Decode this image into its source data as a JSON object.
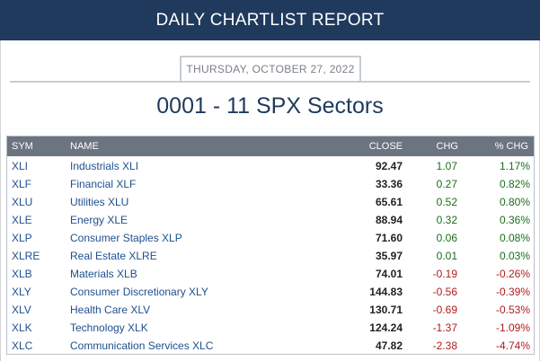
{
  "header": {
    "title": "DAILY CHARTLIST REPORT"
  },
  "report": {
    "date": "THURSDAY, OCTOBER 27, 2022",
    "title": "0001 - 11 SPX Sectors"
  },
  "table": {
    "columns": {
      "sym": "SYM",
      "name": "NAME",
      "close": "CLOSE",
      "chg": "CHG",
      "pct": "% CHG"
    },
    "rows": [
      {
        "sym": "XLI",
        "name": "Industrials XLI",
        "close": "92.47",
        "chg": "1.07",
        "pct": "1.17%",
        "dir": "pos"
      },
      {
        "sym": "XLF",
        "name": "Financial XLF",
        "close": "33.36",
        "chg": "0.27",
        "pct": "0.82%",
        "dir": "pos"
      },
      {
        "sym": "XLU",
        "name": "Utilities XLU",
        "close": "65.61",
        "chg": "0.52",
        "pct": "0.80%",
        "dir": "pos"
      },
      {
        "sym": "XLE",
        "name": "Energy XLE",
        "close": "88.94",
        "chg": "0.32",
        "pct": "0.36%",
        "dir": "pos"
      },
      {
        "sym": "XLP",
        "name": "Consumer Staples XLP",
        "close": "71.60",
        "chg": "0.06",
        "pct": "0.08%",
        "dir": "pos"
      },
      {
        "sym": "XLRE",
        "name": "Real Estate XLRE",
        "close": "35.97",
        "chg": "0.01",
        "pct": "0.03%",
        "dir": "pos"
      },
      {
        "sym": "XLB",
        "name": "Materials XLB",
        "close": "74.01",
        "chg": "-0.19",
        "pct": "-0.26%",
        "dir": "neg"
      },
      {
        "sym": "XLY",
        "name": "Consumer Discretionary XLY",
        "close": "144.83",
        "chg": "-0.56",
        "pct": "-0.39%",
        "dir": "neg"
      },
      {
        "sym": "XLV",
        "name": "Health Care XLV",
        "close": "130.71",
        "chg": "-0.69",
        "pct": "-0.53%",
        "dir": "neg"
      },
      {
        "sym": "XLK",
        "name": "Technology XLK",
        "close": "124.24",
        "chg": "-1.37",
        "pct": "-1.09%",
        "dir": "neg"
      },
      {
        "sym": "XLC",
        "name": "Communication Services XLC",
        "close": "47.82",
        "chg": "-2.38",
        "pct": "-4.74%",
        "dir": "neg"
      }
    ]
  },
  "colors": {
    "header_bg": "#1f3a5c",
    "table_header_bg": "#6b7480",
    "link": "#1f4f8f",
    "positive": "#1b6e1b",
    "negative": "#b01c1c"
  }
}
